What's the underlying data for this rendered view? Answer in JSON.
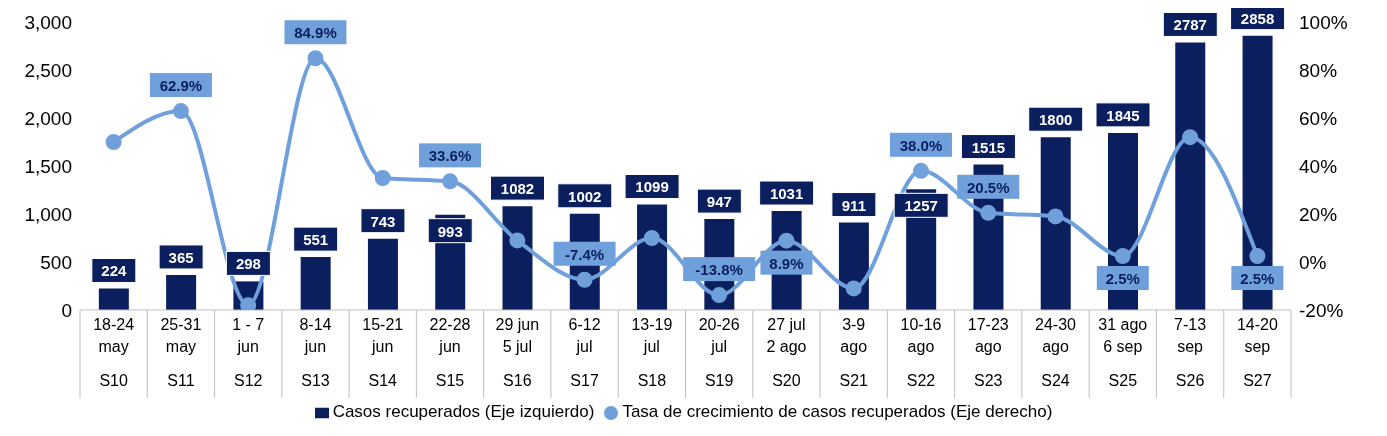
{
  "chart_data": {
    "type": "bar",
    "categories": [
      "18-24\nmay\nS10",
      "25-31\nmay\nS11",
      "1 - 7\njun\nS12",
      "8-14\njun\nS13",
      "15-21\njun\nS14",
      "22-28\njun\nS15",
      "29 jun\n5 jul\nS16",
      "6-12\njul\nS17",
      "13-19\njul\nS18",
      "20-26\njul\nS19",
      "27 jul\n2 ago\nS20",
      "3-9\nago\nS21",
      "10-16\nago\nS22",
      "17-23\nago\nS23",
      "24-30\nago\nS24",
      "31 ago\n6 sep\nS25",
      "7-13\nsep\nS26",
      "14-20\nsep\nS27"
    ],
    "series": [
      {
        "name": "Casos recuperados (Eje izquierdo)",
        "color": "#0b1f5e",
        "values": [
          224,
          365,
          298,
          551,
          743,
          993,
          1082,
          1002,
          1099,
          947,
          1031,
          911,
          1257,
          1515,
          1800,
          1845,
          2787,
          2858
        ],
        "value_labels": [
          "224",
          "365",
          "298",
          "551",
          "743",
          "993",
          "1082",
          "1002",
          "1099",
          "947",
          "1031",
          "911",
          "1257",
          "1515",
          "1800",
          "1845",
          "2787",
          "2858"
        ]
      },
      {
        "name": "Tasa de crecimiento de casos recuperados (Eje derecho)",
        "type": "line",
        "axis": "y2",
        "color": "#6fa0dc",
        "values": [
          50,
          62.9,
          -18,
          84.9,
          35,
          33.6,
          9,
          -7.4,
          10,
          -13.8,
          8.9,
          -11,
          38.0,
          20.5,
          19,
          2.5,
          52,
          2.5
        ],
        "value_labels": [
          null,
          "62.9%",
          null,
          "84.9%",
          null,
          "33.6%",
          null,
          "-7.4%",
          null,
          "-13.8%",
          "8.9%",
          null,
          "38.0%",
          "20.5%",
          null,
          "2.5%",
          null,
          "2.5%"
        ]
      }
    ],
    "ylim": [
      0,
      3000
    ],
    "yticks": [
      0,
      {
        "value": 500,
        "label": "500"
      },
      {
        "value": 1000,
        "label": "1,000"
      },
      {
        "value": 1500,
        "label": "1,500"
      },
      {
        "value": 2000,
        "label": "2,000"
      },
      {
        "value": 2500,
        "label": "2,500"
      },
      {
        "value": 3000,
        "label": "3,000"
      }
    ],
    "y2lim": [
      -20,
      100
    ],
    "y2ticks": [
      {
        "value": -20,
        "label": "-20%"
      },
      {
        "value": 0,
        "label": "0%"
      },
      {
        "value": 20,
        "label": "20%"
      },
      {
        "value": 40,
        "label": "40%"
      },
      {
        "value": 60,
        "label": "60%"
      },
      {
        "value": 80,
        "label": "80%"
      },
      {
        "value": 100,
        "label": "100%"
      }
    ],
    "grid": false,
    "legend": "bottom",
    "marker": "circle",
    "line_style": "solid"
  }
}
